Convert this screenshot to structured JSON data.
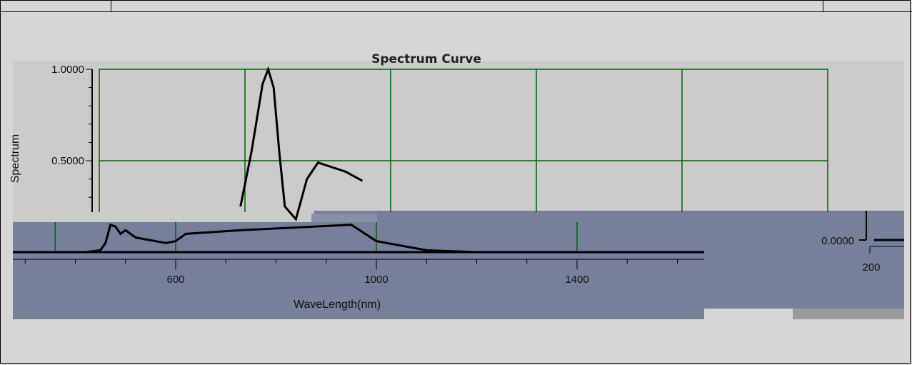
{
  "chart_data": {
    "type": "line",
    "title": "Spectrum Curve",
    "xlabel": "WaveLength(nm)",
    "ylabel": "Spectrum",
    "xlim": [
      380,
      1700
    ],
    "ylim": [
      0,
      1
    ],
    "grid": true,
    "line_color": "#000000",
    "grid_color": "#006400",
    "x_ticks": [
      {
        "value": 600,
        "label": "600"
      },
      {
        "value": 1000,
        "label": "1000"
      },
      {
        "value": 1400,
        "label": "1400"
      }
    ],
    "y_ticks": [
      {
        "value": 1.0,
        "label": "1.0000"
      },
      {
        "value": 0.5,
        "label": "0.5000"
      }
    ],
    "series": [
      {
        "x": [
          380,
          420,
          450,
          460,
          470,
          480,
          490,
          500,
          510,
          520,
          540,
          560,
          580,
          600,
          620,
          640,
          660,
          680,
          690,
          700,
          710,
          720,
          730,
          740,
          760,
          780,
          800,
          830,
          860,
          900,
          950,
          1000,
          1100,
          1200,
          1300,
          1400,
          1500,
          1600,
          1700
        ],
        "y": [
          0.0,
          0.0,
          0.01,
          0.05,
          0.15,
          0.14,
          0.1,
          0.12,
          0.1,
          0.08,
          0.07,
          0.06,
          0.05,
          0.06,
          0.1,
          0.25,
          0.55,
          0.92,
          1.0,
          0.9,
          0.55,
          0.25,
          0.12,
          0.18,
          0.4,
          0.49,
          0.47,
          0.44,
          0.39,
          0.29,
          0.15,
          0.06,
          0.01,
          0.0,
          0.0,
          0.0,
          0.0,
          0.0,
          0.0
        ]
      }
    ]
  },
  "inset": {
    "y_tick_label": "0.0000",
    "x_tick_label": "200"
  }
}
